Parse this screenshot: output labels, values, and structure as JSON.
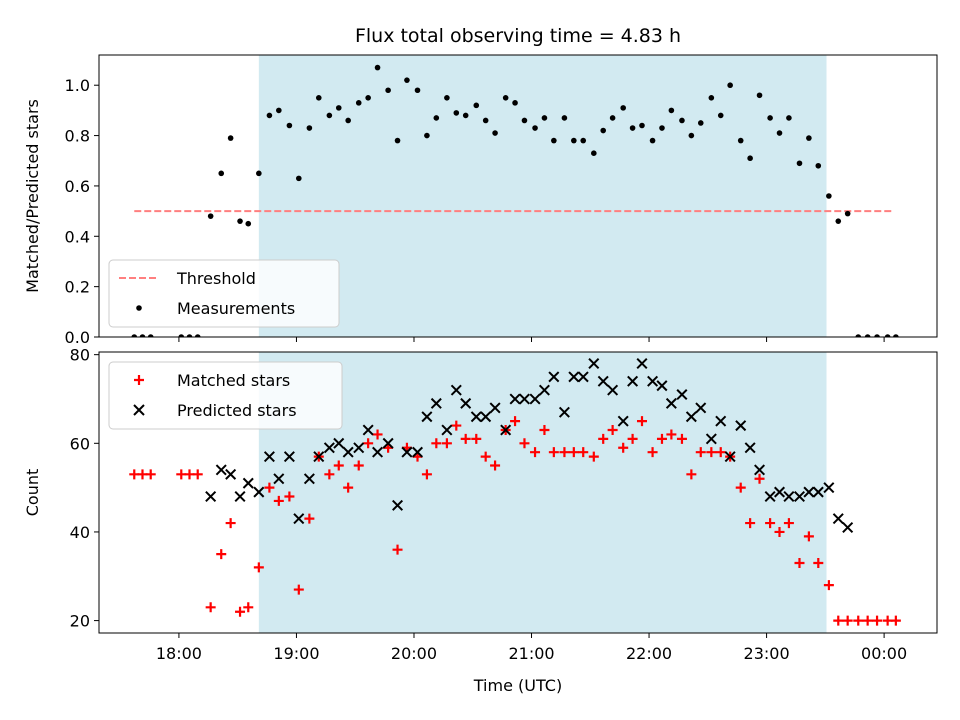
{
  "chart_data": {
    "type": "scatter",
    "title": "Flux total observing time = 4.83 h",
    "xlabel": "Time (UTC)",
    "x_unit": "hours since midnight (UTC)",
    "x_range": [
      17.32,
      24.45
    ],
    "x_ticks": [
      {
        "value": 18,
        "label": "18:00"
      },
      {
        "value": 19,
        "label": "19:00"
      },
      {
        "value": 20,
        "label": "20:00"
      },
      {
        "value": 21,
        "label": "21:00"
      },
      {
        "value": 22,
        "label": "22:00"
      },
      {
        "value": 23,
        "label": "23:00"
      },
      {
        "value": 24,
        "label": "00:00"
      }
    ],
    "observing_window": {
      "start": 18.68,
      "end": 23.51,
      "color": "#add8e6"
    },
    "panels": [
      {
        "id": "ratio",
        "ylabel": "Matched/Predicted stars",
        "ylim": [
          0,
          1.12
        ],
        "yticks": [
          {
            "value": 0,
            "label": "0.0"
          },
          {
            "value": 0.2,
            "label": "0.2"
          },
          {
            "value": 0.4,
            "label": "0.4"
          },
          {
            "value": 0.6,
            "label": "0.6"
          },
          {
            "value": 0.8,
            "label": "0.8"
          },
          {
            "value": 1.0,
            "label": "1.0"
          }
        ],
        "legend": {
          "position": "lower-left",
          "entries": [
            "Threshold",
            "Measurements"
          ]
        },
        "threshold": {
          "name": "Threshold",
          "value": 0.5,
          "x_start": 17.62,
          "x_end": 24.08,
          "color": "#ff7f7f"
        },
        "series": [
          {
            "name": "Measurements",
            "marker": "dot",
            "color": "#000000",
            "x": [
              17.62,
              17.69,
              17.76,
              18.02,
              18.09,
              18.16,
              18.27,
              18.36,
              18.44,
              18.52,
              18.59,
              18.68,
              18.77,
              18.85,
              18.94,
              19.02,
              19.11,
              19.19,
              19.28,
              19.36,
              19.44,
              19.53,
              19.61,
              19.69,
              19.78,
              19.86,
              19.94,
              20.03,
              20.11,
              20.19,
              20.28,
              20.36,
              20.44,
              20.53,
              20.61,
              20.69,
              20.78,
              20.86,
              20.94,
              21.03,
              21.11,
              21.19,
              21.28,
              21.36,
              21.44,
              21.53,
              21.61,
              21.69,
              21.78,
              21.86,
              21.94,
              22.03,
              22.11,
              22.19,
              22.28,
              22.36,
              22.44,
              22.53,
              22.61,
              22.69,
              22.78,
              22.86,
              22.94,
              23.03,
              23.11,
              23.19,
              23.28,
              23.36,
              23.44,
              23.53,
              23.61,
              23.69,
              23.78,
              23.86,
              23.94,
              24.03,
              24.1
            ],
            "y": [
              0.0,
              0.0,
              0.0,
              0.0,
              0.0,
              0.0,
              0.48,
              0.65,
              0.79,
              0.46,
              0.45,
              0.65,
              0.88,
              0.9,
              0.84,
              0.63,
              0.83,
              0.95,
              0.88,
              0.91,
              0.86,
              0.93,
              0.95,
              1.07,
              0.98,
              0.78,
              1.02,
              0.98,
              0.8,
              0.87,
              0.95,
              0.89,
              0.88,
              0.92,
              0.86,
              0.81,
              0.95,
              0.93,
              0.86,
              0.83,
              0.87,
              0.78,
              0.87,
              0.78,
              0.78,
              0.73,
              0.82,
              0.87,
              0.91,
              0.83,
              0.84,
              0.78,
              0.83,
              0.9,
              0.86,
              0.8,
              0.85,
              0.95,
              0.88,
              1.0,
              0.78,
              0.71,
              0.96,
              0.87,
              0.81,
              0.87,
              0.69,
              0.79,
              0.68,
              0.56,
              0.46,
              0.49,
              0.0,
              0.0,
              0.0,
              0.0,
              0.0
            ]
          }
        ]
      },
      {
        "id": "counts",
        "ylabel": "Count",
        "ylim": [
          17.2,
          80.6
        ],
        "yticks": [
          {
            "value": 20,
            "label": "20"
          },
          {
            "value": 40,
            "label": "40"
          },
          {
            "value": 60,
            "label": "60"
          },
          {
            "value": 80,
            "label": "80"
          }
        ],
        "legend": {
          "position": "upper-left",
          "entries": [
            "Matched stars",
            "Predicted stars"
          ]
        },
        "series": [
          {
            "name": "Matched stars",
            "marker": "plus",
            "color": "#ff0000",
            "x": [
              17.62,
              17.69,
              17.76,
              18.02,
              18.09,
              18.16,
              18.27,
              18.36,
              18.44,
              18.52,
              18.59,
              18.68,
              18.77,
              18.85,
              18.94,
              19.02,
              19.11,
              19.19,
              19.28,
              19.36,
              19.44,
              19.53,
              19.61,
              19.69,
              19.78,
              19.86,
              19.94,
              20.03,
              20.11,
              20.19,
              20.28,
              20.36,
              20.44,
              20.53,
              20.61,
              20.69,
              20.78,
              20.86,
              20.94,
              21.03,
              21.11,
              21.19,
              21.28,
              21.36,
              21.44,
              21.53,
              21.61,
              21.69,
              21.78,
              21.86,
              21.94,
              22.03,
              22.11,
              22.19,
              22.28,
              22.36,
              22.44,
              22.53,
              22.61,
              22.69,
              22.78,
              22.86,
              22.94,
              23.03,
              23.11,
              23.19,
              23.28,
              23.36,
              23.44,
              23.53,
              23.61,
              23.69,
              23.78,
              23.86,
              23.94,
              24.03,
              24.1
            ],
            "y": [
              53,
              53,
              53,
              53,
              53,
              53,
              23,
              35,
              42,
              22,
              23,
              32,
              50,
              47,
              48,
              27,
              43,
              57,
              53,
              55,
              50,
              55,
              60,
              62,
              59,
              36,
              59,
              57,
              53,
              60,
              60,
              64,
              61,
              61,
              57,
              55,
              63,
              65,
              60,
              58,
              63,
              58,
              58,
              58,
              58,
              57,
              61,
              63,
              59,
              61,
              65,
              58,
              61,
              62,
              61,
              53,
              58,
              58,
              58,
              57,
              50,
              42,
              52,
              42,
              40,
              42,
              33,
              39,
              33,
              28,
              20,
              20,
              20,
              20,
              20,
              20,
              20
            ]
          },
          {
            "name": "Predicted stars",
            "marker": "x",
            "color": "#000000",
            "x": [
              18.27,
              18.36,
              18.44,
              18.52,
              18.59,
              18.68,
              18.77,
              18.85,
              18.94,
              19.02,
              19.11,
              19.19,
              19.28,
              19.36,
              19.44,
              19.53,
              19.61,
              19.69,
              19.78,
              19.86,
              19.94,
              20.03,
              20.11,
              20.19,
              20.28,
              20.36,
              20.44,
              20.53,
              20.61,
              20.69,
              20.78,
              20.86,
              20.94,
              21.03,
              21.11,
              21.19,
              21.28,
              21.36,
              21.44,
              21.53,
              21.61,
              21.69,
              21.78,
              21.86,
              21.94,
              22.03,
              22.11,
              22.19,
              22.28,
              22.36,
              22.44,
              22.53,
              22.61,
              22.69,
              22.78,
              22.86,
              22.94,
              23.03,
              23.11,
              23.19,
              23.28,
              23.36,
              23.44,
              23.53,
              23.61,
              23.69
            ],
            "y": [
              48,
              54,
              53,
              48,
              51,
              49,
              57,
              52,
              57,
              43,
              52,
              57,
              59,
              60,
              58,
              59,
              63,
              58,
              60,
              46,
              58,
              58,
              66,
              69,
              63,
              72,
              69,
              66,
              66,
              68,
              63,
              70,
              70,
              70,
              72,
              75,
              67,
              75,
              75,
              78,
              74,
              72,
              65,
              74,
              78,
              74,
              73,
              69,
              71,
              66,
              68,
              61,
              65,
              57,
              64,
              59,
              54,
              48,
              49,
              48,
              48,
              49,
              49,
              50,
              43,
              41
            ]
          }
        ]
      }
    ]
  }
}
